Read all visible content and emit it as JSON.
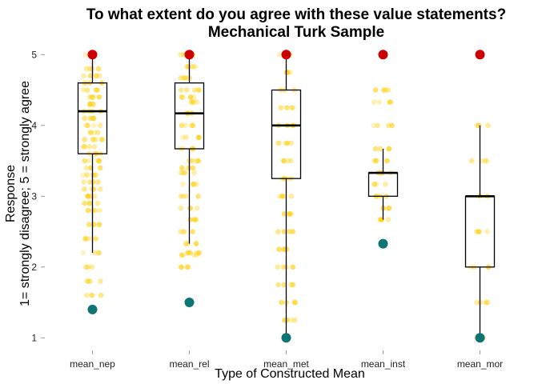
{
  "chart_data": {
    "type": "boxplot",
    "title": "To what extent do you agree with these value statements?",
    "subtitle": "Mechanical Turk Sample",
    "xlabel": "Type of Constructed Mean",
    "ylabel_line1": "Response",
    "ylabel_line2": "1= strongly disagree; 5 = strongly agree",
    "ylim": [
      0.8,
      5.15
    ],
    "yticks": [
      1,
      2,
      3,
      4,
      5
    ],
    "ytick_labels": [
      "1",
      "2",
      "3",
      "4",
      "5"
    ],
    "grid": false,
    "colors": {
      "points": "#FFD21A",
      "max_marker": "#CC0000",
      "min_marker": "#0E7474",
      "box": "#000000"
    },
    "categories": [
      "mean_nep",
      "mean_rel",
      "mean_met",
      "mean_inst",
      "mean_mor"
    ],
    "boxes": [
      {
        "name": "mean_nep",
        "whisker_low": 2.2,
        "q1": 3.6,
        "median": 4.2,
        "q3": 4.6,
        "whisker_high": 5.0,
        "min": 1.4,
        "max": 5.0,
        "points": [
          5.0,
          4.8,
          4.7,
          4.6,
          4.5,
          4.4,
          4.3,
          4.2,
          4.1,
          4.0,
          3.9,
          3.8,
          3.7,
          3.6,
          3.5,
          3.4,
          3.3,
          3.2,
          3.1,
          3.0,
          2.9,
          2.8,
          2.6,
          2.4,
          2.2,
          2.0,
          1.8,
          1.6
        ]
      },
      {
        "name": "mean_rel",
        "whisker_low": 2.33,
        "q1": 3.67,
        "median": 4.17,
        "q3": 4.6,
        "whisker_high": 5.0,
        "min": 1.5,
        "max": 5.0,
        "points": [
          5.0,
          4.83,
          4.67,
          4.5,
          4.4,
          4.33,
          4.17,
          4.0,
          3.83,
          3.67,
          3.5,
          3.4,
          3.33,
          3.17,
          3.0,
          2.83,
          2.67,
          2.5,
          2.33,
          2.2,
          2.17,
          2.0
        ]
      },
      {
        "name": "mean_met",
        "whisker_low": 1.0,
        "q1": 3.25,
        "median": 4.0,
        "q3": 4.5,
        "whisker_high": 5.0,
        "min": 1.0,
        "max": 5.0,
        "points": [
          5.0,
          4.75,
          4.5,
          4.25,
          4.0,
          3.75,
          3.5,
          3.25,
          3.0,
          2.75,
          2.5,
          2.25,
          2.0,
          1.75,
          1.5,
          1.25
        ]
      },
      {
        "name": "mean_inst",
        "whisker_low": 2.67,
        "q1": 3.0,
        "median": 3.33,
        "q3": 3.33,
        "whisker_high": 3.67,
        "min": 2.33,
        "max": 5.0,
        "points": [
          4.5,
          4.33,
          4.0,
          3.67,
          3.5,
          3.33,
          3.17,
          3.0,
          2.83,
          2.67
        ]
      },
      {
        "name": "mean_mor",
        "whisker_low": 1.0,
        "q1": 2.0,
        "median": 3.0,
        "q3": 3.0,
        "whisker_high": 4.0,
        "min": 1.0,
        "max": 5.0,
        "points": [
          4.0,
          3.5,
          3.0,
          2.5,
          2.0,
          1.5,
          1.0
        ]
      }
    ]
  }
}
